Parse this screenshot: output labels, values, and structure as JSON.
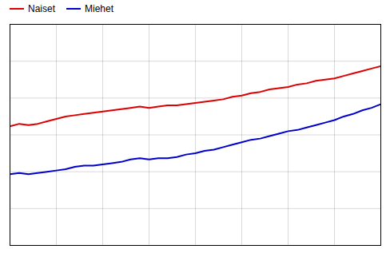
{
  "chart_data": {
    "type": "line",
    "x": [
      1971,
      1972,
      1973,
      1974,
      1975,
      1976,
      1977,
      1978,
      1979,
      1980,
      1981,
      1982,
      1983,
      1984,
      1985,
      1986,
      1987,
      1988,
      1989,
      1990,
      1991,
      1992,
      1993,
      1994,
      1995,
      1996,
      1997,
      1998,
      1999,
      2000,
      2001,
      2002,
      2003,
      2004,
      2005,
      2006,
      2007,
      2008,
      2009,
      2010,
      2011
    ],
    "series": [
      {
        "name": "Naiset",
        "color": "#dd0000",
        "values": [
          15.7,
          15.9,
          15.8,
          15.9,
          16.1,
          16.3,
          16.5,
          16.6,
          16.7,
          16.8,
          16.9,
          17.0,
          17.1,
          17.2,
          17.3,
          17.2,
          17.3,
          17.4,
          17.4,
          17.5,
          17.6,
          17.7,
          17.8,
          17.9,
          18.1,
          18.2,
          18.4,
          18.5,
          18.7,
          18.8,
          18.9,
          19.1,
          19.2,
          19.4,
          19.5,
          19.6,
          19.8,
          20.0,
          20.2,
          20.4,
          20.6
        ]
      },
      {
        "name": "Miehet",
        "color": "#0000cc",
        "values": [
          11.8,
          11.9,
          11.8,
          11.9,
          12.0,
          12.1,
          12.2,
          12.4,
          12.5,
          12.5,
          12.6,
          12.7,
          12.8,
          13.0,
          13.1,
          13.0,
          13.1,
          13.1,
          13.2,
          13.4,
          13.5,
          13.7,
          13.8,
          14.0,
          14.2,
          14.4,
          14.6,
          14.7,
          14.9,
          15.1,
          15.3,
          15.4,
          15.6,
          15.8,
          16.0,
          16.2,
          16.5,
          16.7,
          17.0,
          17.2,
          17.5
        ]
      }
    ],
    "xlim": [
      1971,
      2011
    ],
    "ylim": [
      6,
      24
    ],
    "xticks": [
      1971,
      1976,
      1981,
      1986,
      1991,
      1996,
      2001,
      2006,
      2011
    ],
    "yticks": [
      6,
      9,
      12,
      15,
      18,
      21,
      24
    ],
    "grid": true,
    "legend": "upper left",
    "tick_labels": false
  }
}
